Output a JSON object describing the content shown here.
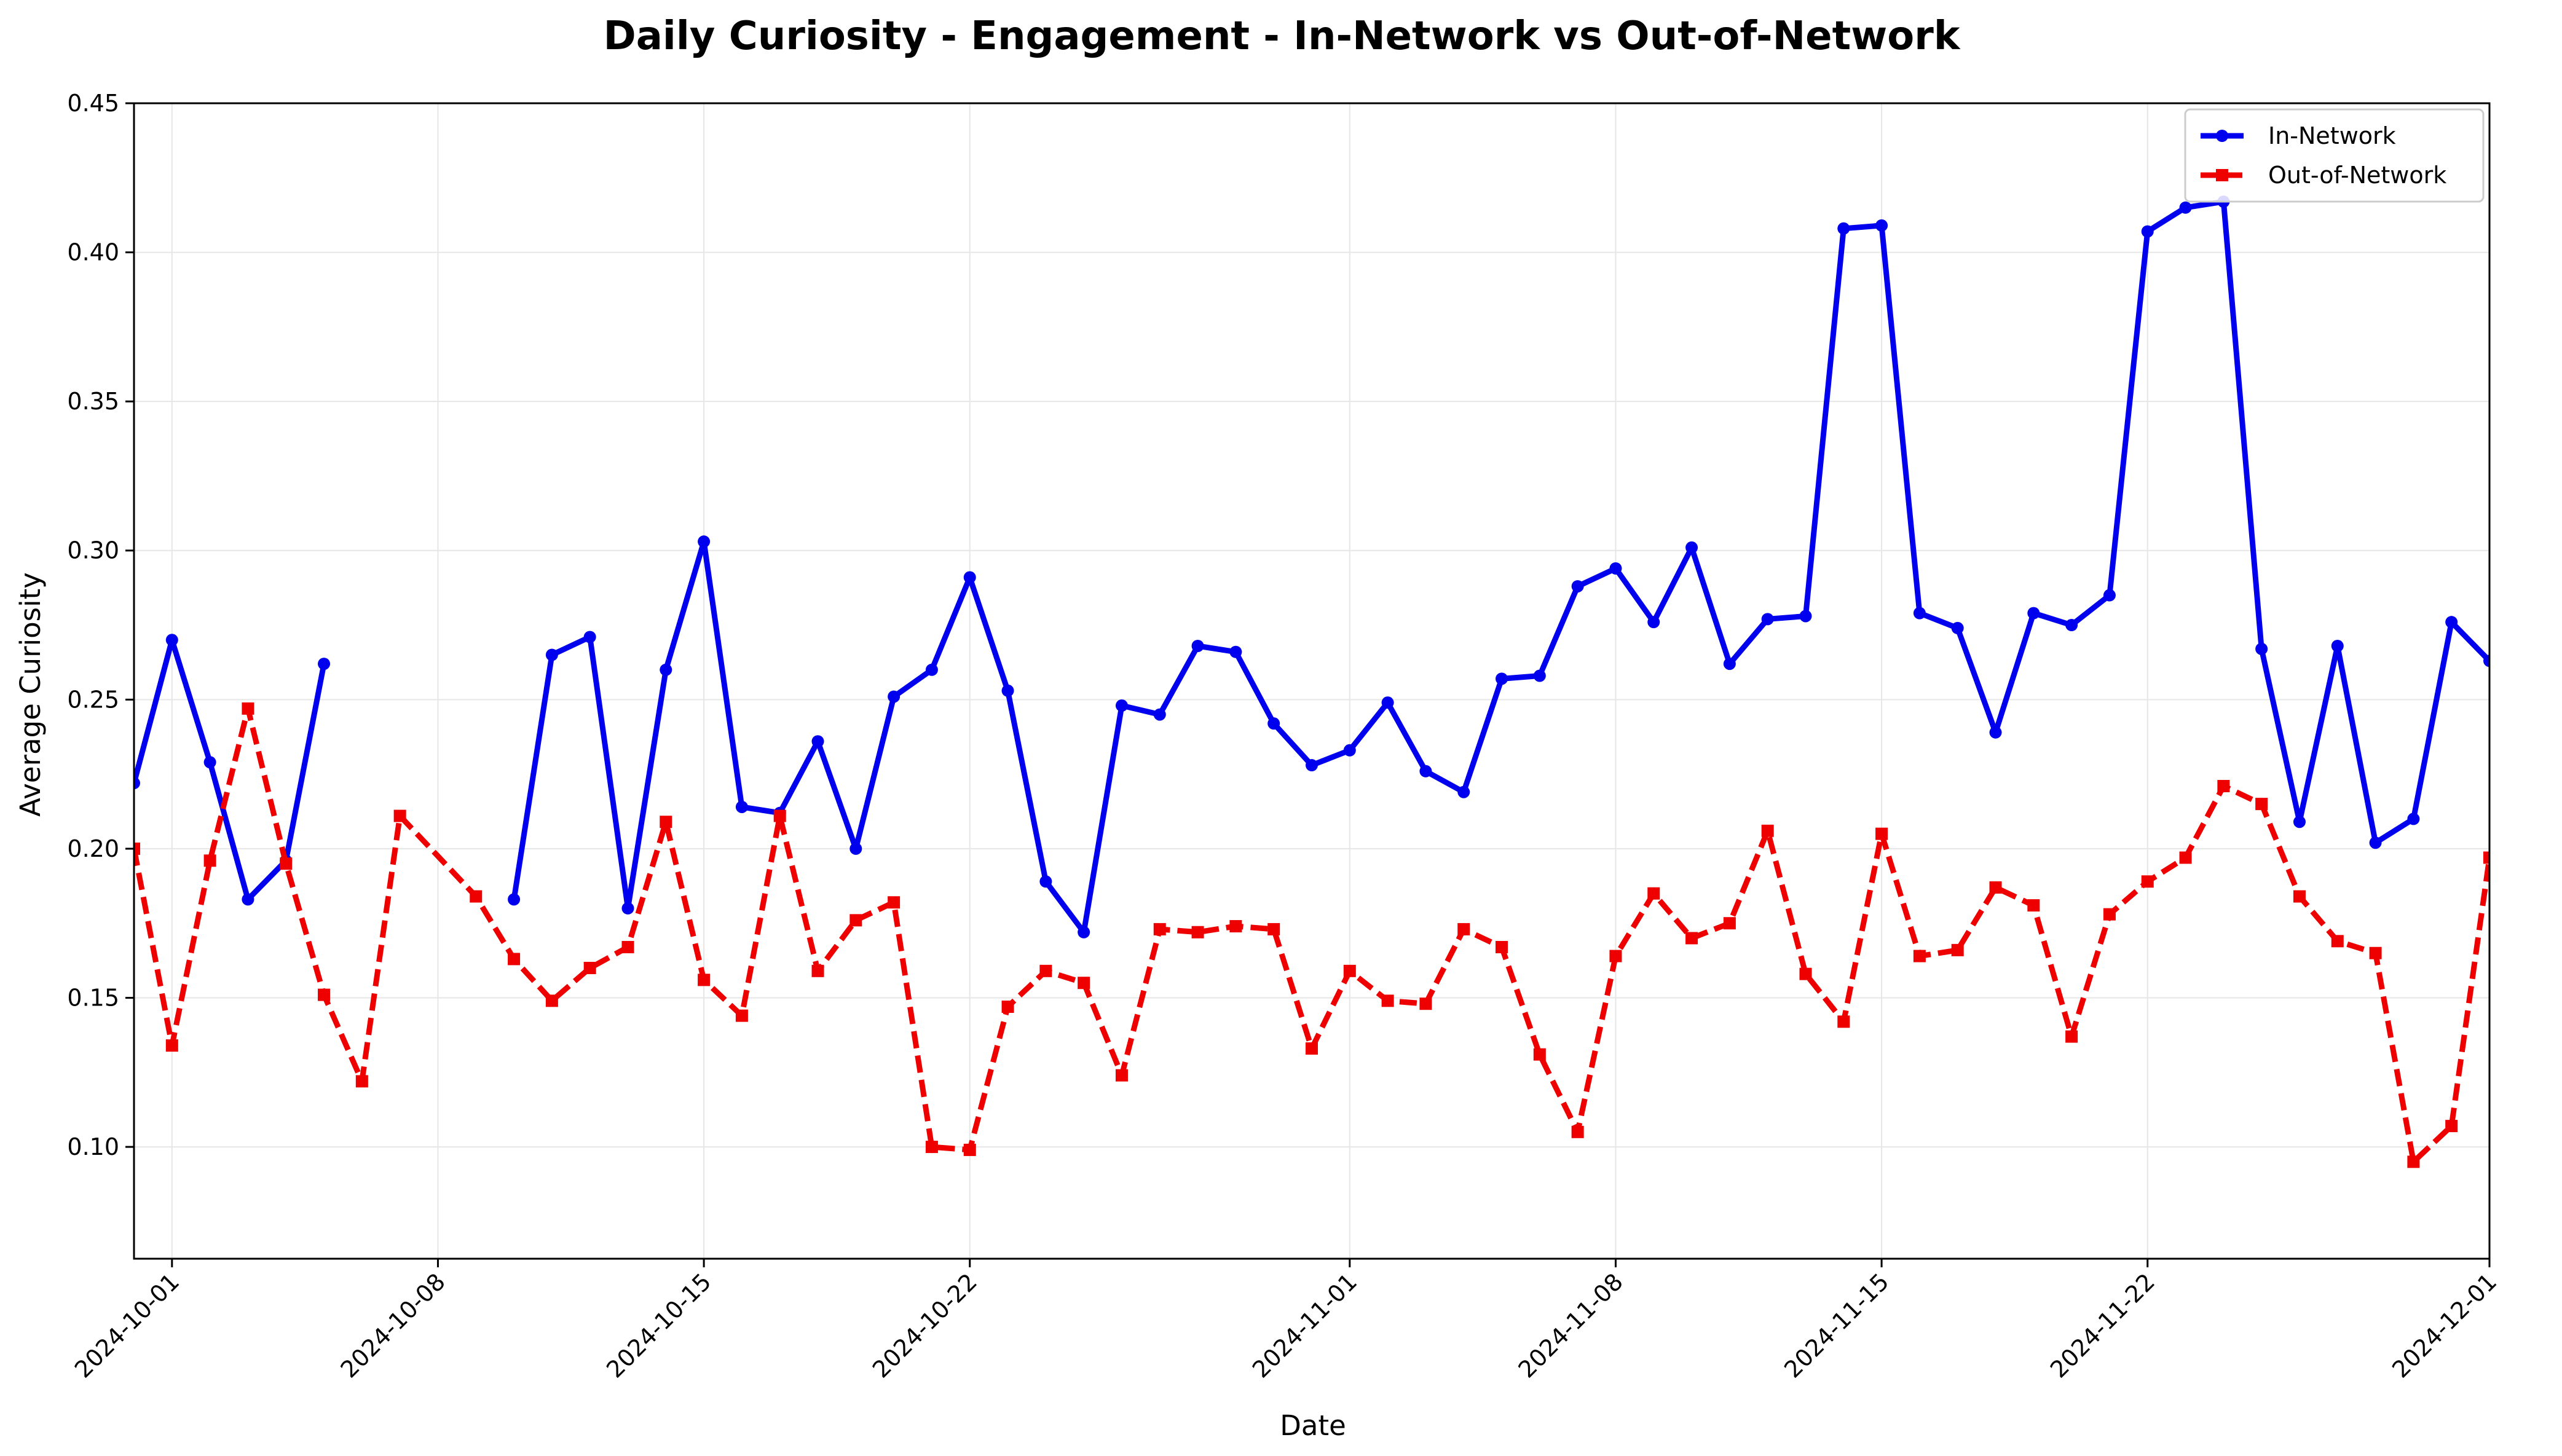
{
  "chart_data": {
    "type": "line",
    "title": "Daily Curiosity - Engagement - In-Network vs Out-of-Network",
    "xlabel": "Date",
    "ylabel": "Average Curiosity",
    "xlim": [
      "2024-09-30",
      "2024-12-01"
    ],
    "ylim": [
      0.0625,
      0.45
    ],
    "y_ticks": [
      "0.10",
      "0.15",
      "0.20",
      "0.25",
      "0.30",
      "0.35",
      "0.40",
      "0.45"
    ],
    "x_ticks": [
      "2024-10-01",
      "2024-10-08",
      "2024-10-15",
      "2024-10-22",
      "2024-11-01",
      "2024-11-08",
      "2024-11-15",
      "2024-11-22",
      "2024-12-01"
    ],
    "grid": true,
    "legend_position": "top-right",
    "series": [
      {
        "name": "In-Network",
        "color": "#0000ee",
        "line_style": "solid",
        "marker": "circle",
        "points": [
          [
            "2024-09-30",
            0.222
          ],
          [
            "2024-10-01",
            0.27
          ],
          [
            "2024-10-02",
            0.229
          ],
          [
            "2024-10-03",
            0.183
          ],
          [
            "2024-10-04",
            0.196
          ],
          [
            "2024-10-05",
            0.262
          ],
          null,
          [
            "2024-10-10",
            0.183
          ],
          [
            "2024-10-11",
            0.265
          ],
          [
            "2024-10-12",
            0.271
          ],
          [
            "2024-10-13",
            0.18
          ],
          [
            "2024-10-14",
            0.26
          ],
          [
            "2024-10-15",
            0.303
          ],
          [
            "2024-10-16",
            0.214
          ],
          [
            "2024-10-17",
            0.212
          ],
          [
            "2024-10-18",
            0.236
          ],
          [
            "2024-10-19",
            0.2
          ],
          [
            "2024-10-20",
            0.251
          ],
          [
            "2024-10-21",
            0.26
          ],
          [
            "2024-10-22",
            0.291
          ],
          [
            "2024-10-23",
            0.253
          ],
          [
            "2024-10-24",
            0.189
          ],
          [
            "2024-10-25",
            0.172
          ],
          [
            "2024-10-26",
            0.248
          ],
          [
            "2024-10-27",
            0.245
          ],
          [
            "2024-10-28",
            0.268
          ],
          [
            "2024-10-29",
            0.266
          ],
          [
            "2024-10-30",
            0.242
          ],
          [
            "2024-10-31",
            0.228
          ],
          [
            "2024-11-01",
            0.233
          ],
          [
            "2024-11-02",
            0.249
          ],
          [
            "2024-11-03",
            0.226
          ],
          [
            "2024-11-04",
            0.219
          ],
          [
            "2024-11-05",
            0.257
          ],
          [
            "2024-11-06",
            0.258
          ],
          [
            "2024-11-07",
            0.288
          ],
          [
            "2024-11-08",
            0.294
          ],
          [
            "2024-11-09",
            0.276
          ],
          [
            "2024-11-10",
            0.301
          ],
          [
            "2024-11-11",
            0.262
          ],
          [
            "2024-11-12",
            0.277
          ],
          [
            "2024-11-13",
            0.278
          ],
          [
            "2024-11-14",
            0.408
          ],
          [
            "2024-11-15",
            0.409
          ],
          [
            "2024-11-16",
            0.279
          ],
          [
            "2024-11-17",
            0.274
          ],
          [
            "2024-11-18",
            0.239
          ],
          [
            "2024-11-19",
            0.279
          ],
          [
            "2024-11-20",
            0.275
          ],
          [
            "2024-11-21",
            0.285
          ],
          [
            "2024-11-22",
            0.407
          ],
          [
            "2024-11-23",
            0.415
          ],
          [
            "2024-11-24",
            0.417
          ],
          [
            "2024-11-25",
            0.267
          ],
          [
            "2024-11-26",
            0.209
          ],
          [
            "2024-11-27",
            0.268
          ],
          [
            "2024-11-28",
            0.202
          ],
          [
            "2024-11-29",
            0.21
          ],
          [
            "2024-11-30",
            0.276
          ],
          [
            "2024-12-01",
            0.263
          ]
        ]
      },
      {
        "name": "Out-of-Network",
        "color": "#ee0000",
        "line_style": "dashed",
        "marker": "square",
        "points": [
          [
            "2024-09-30",
            0.2
          ],
          [
            "2024-10-01",
            0.134
          ],
          [
            "2024-10-02",
            0.196
          ],
          [
            "2024-10-03",
            0.247
          ],
          [
            "2024-10-04",
            0.195
          ],
          [
            "2024-10-05",
            0.151
          ],
          [
            "2024-10-06",
            0.122
          ],
          [
            "2024-10-07",
            0.211
          ],
          [
            "2024-10-09",
            0.184
          ],
          [
            "2024-10-10",
            0.163
          ],
          [
            "2024-10-11",
            0.149
          ],
          [
            "2024-10-12",
            0.16
          ],
          [
            "2024-10-13",
            0.167
          ],
          [
            "2024-10-14",
            0.209
          ],
          [
            "2024-10-15",
            0.156
          ],
          [
            "2024-10-16",
            0.144
          ],
          [
            "2024-10-17",
            0.211
          ],
          [
            "2024-10-18",
            0.159
          ],
          [
            "2024-10-19",
            0.176
          ],
          [
            "2024-10-20",
            0.182
          ],
          [
            "2024-10-21",
            0.1
          ],
          [
            "2024-10-22",
            0.099
          ],
          [
            "2024-10-23",
            0.147
          ],
          [
            "2024-10-24",
            0.159
          ],
          [
            "2024-10-25",
            0.155
          ],
          [
            "2024-10-26",
            0.124
          ],
          [
            "2024-10-27",
            0.173
          ],
          [
            "2024-10-28",
            0.172
          ],
          [
            "2024-10-29",
            0.174
          ],
          [
            "2024-10-30",
            0.173
          ],
          [
            "2024-10-31",
            0.133
          ],
          [
            "2024-11-01",
            0.159
          ],
          [
            "2024-11-02",
            0.149
          ],
          [
            "2024-11-03",
            0.148
          ],
          [
            "2024-11-04",
            0.173
          ],
          [
            "2024-11-05",
            0.167
          ],
          [
            "2024-11-06",
            0.131
          ],
          [
            "2024-11-07",
            0.105
          ],
          [
            "2024-11-08",
            0.164
          ],
          [
            "2024-11-09",
            0.185
          ],
          [
            "2024-11-10",
            0.17
          ],
          [
            "2024-11-11",
            0.175
          ],
          [
            "2024-11-12",
            0.206
          ],
          [
            "2024-11-13",
            0.158
          ],
          [
            "2024-11-14",
            0.142
          ],
          [
            "2024-11-15",
            0.205
          ],
          [
            "2024-11-16",
            0.164
          ],
          [
            "2024-11-17",
            0.166
          ],
          [
            "2024-11-18",
            0.187
          ],
          [
            "2024-11-19",
            0.181
          ],
          [
            "2024-11-20",
            0.137
          ],
          [
            "2024-11-21",
            0.178
          ],
          [
            "2024-11-22",
            0.189
          ],
          [
            "2024-11-23",
            0.197
          ],
          [
            "2024-11-24",
            0.221
          ],
          [
            "2024-11-25",
            0.215
          ],
          [
            "2024-11-26",
            0.184
          ],
          [
            "2024-11-27",
            0.169
          ],
          [
            "2024-11-28",
            0.165
          ],
          [
            "2024-11-29",
            0.095
          ],
          [
            "2024-11-30",
            0.107
          ],
          [
            "2024-12-01",
            0.197
          ]
        ]
      }
    ]
  }
}
